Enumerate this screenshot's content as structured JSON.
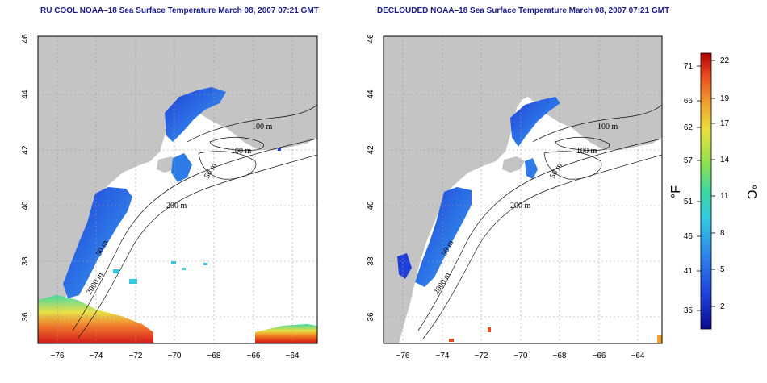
{
  "panels": [
    {
      "title": "RU COOL NOAA–18 Sea Surface Temperature March 08, 2007 07:21 GMT",
      "variant": "raw"
    },
    {
      "title": "DECLOUDED NOAA–18 Sea Surface Temperature March 08, 2007 07:21 GMT",
      "variant": "declouded"
    }
  ],
  "axes": {
    "lon_ticks": [
      "−76",
      "−74",
      "−72",
      "−70",
      "−68",
      "−66",
      "−64"
    ],
    "lat_ticks": [
      "36",
      "38",
      "40",
      "42",
      "44",
      "46"
    ],
    "lon_range": [
      -77.2,
      -63.0
    ],
    "lat_range": [
      35.0,
      46.1
    ],
    "grid": "dotted"
  },
  "contour_labels": [
    "100 m",
    "100 m",
    "50 m",
    "200 m",
    "50 m",
    "2000 m"
  ],
  "colorbar": {
    "fahrenheit_ticks": [
      "71",
      "66",
      "62",
      "57",
      "51",
      "46",
      "41",
      "35"
    ],
    "celsius_ticks": [
      "22",
      "19",
      "17",
      "14",
      "11",
      "8",
      "5",
      "2"
    ],
    "fahrenheit_unit": "°F",
    "celsius_unit": "°C",
    "colors": [
      "#0a0a8a",
      "#1f3fd8",
      "#2f8be8",
      "#33c8e0",
      "#3ed8a0",
      "#8ee050",
      "#e8e040",
      "#f0a030",
      "#e84a20",
      "#b00000"
    ]
  },
  "colors": {
    "land": "#c4c4c4",
    "ocean": "#ffffff",
    "title": "#1a1a8c"
  }
}
